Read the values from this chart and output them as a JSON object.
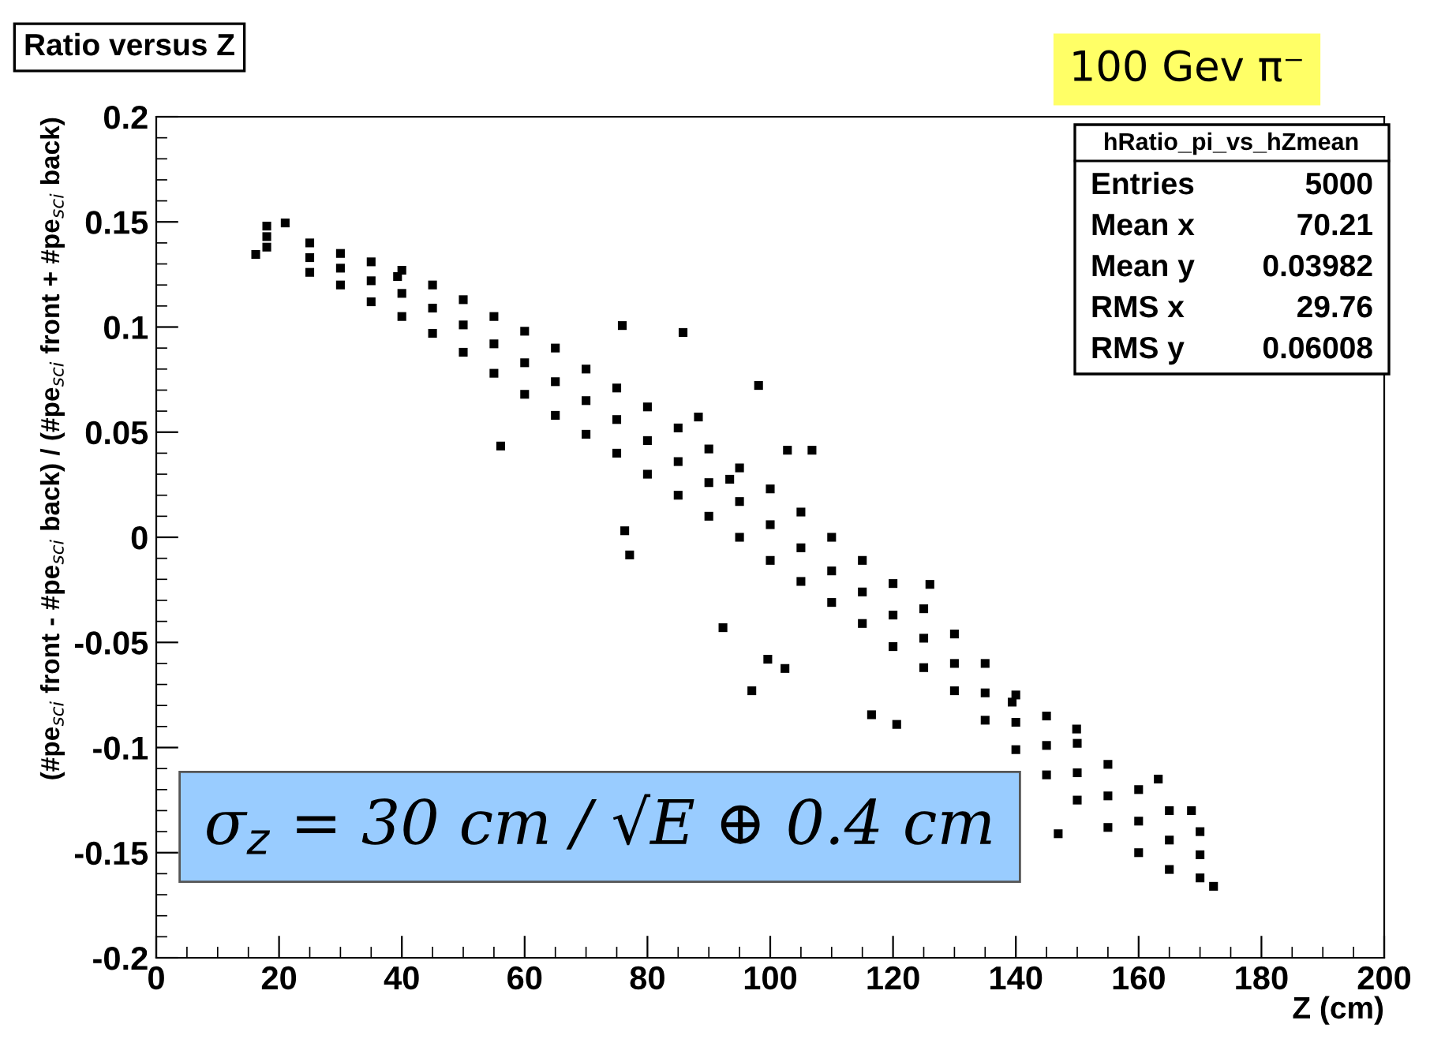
{
  "chart_data": {
    "type": "scatter",
    "title": "Ratio versus Z",
    "xlabel": "Z (cm)",
    "ylabel": "(#pe$_{sci}$ front - #pe$_{sci}$ back) / (#pe$_{sci}$ front + #pe$_{sci}$ back)",
    "annotations": [
      "100 Gev π⁻",
      "hRatio_pi_vs_hZmean",
      "Entries",
      "5000",
      "Mean x",
      "70.21",
      "Mean y",
      "0.03982",
      "RMS x",
      "29.76",
      "RMS y",
      "0.06008",
      "σ$_{z}$ = 30 cm / √E ⊕ 0.4 cm"
    ],
    "series": [
      {
        "color": "#000000",
        "x": [
          18,
          25,
          30,
          35,
          40,
          45,
          50,
          55,
          60,
          65,
          70,
          75,
          80,
          85,
          90,
          95,
          100,
          105,
          110,
          115,
          120,
          125,
          130,
          135,
          140,
          145,
          150,
          155,
          160,
          165,
          170
        ],
        "values": [
          0.148,
          0.14,
          0.135,
          0.131,
          0.127,
          0.12,
          0.113,
          0.105,
          0.098,
          0.09,
          0.08,
          0.071,
          0.062,
          0.052,
          0.042,
          0.033,
          0.023,
          0.012,
          0.0,
          -0.011,
          -0.022,
          -0.034,
          -0.046,
          -0.06,
          -0.075,
          -0.085,
          -0.098,
          -0.108,
          -0.12,
          -0.13,
          -0.14
        ]
      },
      {
        "color": "#000000",
        "x": [
          18,
          25,
          30,
          35,
          40,
          45,
          50,
          55,
          60,
          65,
          70,
          75,
          80,
          85,
          90,
          95,
          100,
          105,
          110,
          115,
          120,
          125,
          130,
          135,
          140,
          145,
          150,
          155,
          160,
          165,
          170
        ],
        "values": [
          0.143,
          0.133,
          0.128,
          0.122,
          0.116,
          0.109,
          0.101,
          0.092,
          0.083,
          0.074,
          0.065,
          0.056,
          0.046,
          0.036,
          0.026,
          0.017,
          0.006,
          -0.005,
          -0.016,
          -0.026,
          -0.037,
          -0.048,
          -0.06,
          -0.074,
          -0.088,
          -0.099,
          -0.112,
          -0.123,
          -0.135,
          -0.144,
          -0.151
        ]
      },
      {
        "color": "#000000",
        "x": [
          18,
          25,
          30,
          35,
          40,
          45,
          50,
          55,
          60,
          65,
          70,
          75,
          80,
          85,
          90,
          95,
          100,
          105,
          110,
          115,
          120,
          125,
          130,
          135,
          140,
          145,
          150,
          155,
          160,
          165,
          170
        ],
        "values": [
          0.138,
          0.126,
          0.12,
          0.112,
          0.105,
          0.097,
          0.088,
          0.078,
          0.068,
          0.058,
          0.049,
          0.04,
          0.03,
          0.02,
          0.01,
          0.0,
          -0.011,
          -0.021,
          -0.031,
          -0.041,
          -0.052,
          -0.062,
          -0.073,
          -0.087,
          -0.101,
          -0.113,
          -0.125,
          -0.138,
          -0.15,
          -0.158,
          -0.162
        ]
      },
      {
        "color": "#000000",
        "x": [
          75.9,
          85.8,
          98.1,
          88.3,
          102.8,
          106.8,
          93.4,
          77.1,
          76.3,
          97.0,
          99.6,
          102.4,
          116.5,
          120.6,
          92.3,
          56.1,
          39.3,
          21,
          16.2,
          126,
          149.9,
          146.9,
          172.2,
          168.6,
          163.2,
          139.4
        ],
        "values": [
          0.1007,
          0.0974,
          0.0722,
          0.0572,
          0.0414,
          0.0414,
          0.0276,
          -0.0084,
          0.0031,
          -0.073,
          -0.058,
          -0.0624,
          -0.0844,
          -0.089,
          -0.043,
          0.0434,
          0.124,
          0.1495,
          0.1345,
          -0.0224,
          -0.0912,
          -0.141,
          -0.166,
          -0.13,
          -0.115,
          -0.0784
        ]
      }
    ],
    "marker": "square",
    "xlim": [
      0,
      200
    ],
    "xticks": [
      0,
      20,
      40,
      60,
      80,
      100,
      120,
      140,
      160,
      180,
      200
    ],
    "ylim": [
      -0.2,
      0.2
    ],
    "yticks": [
      -0.2,
      -0.15,
      -0.1,
      -0.05,
      0,
      0.05,
      0.1,
      0.15,
      0.2
    ],
    "grid": false,
    "legend": false
  }
}
